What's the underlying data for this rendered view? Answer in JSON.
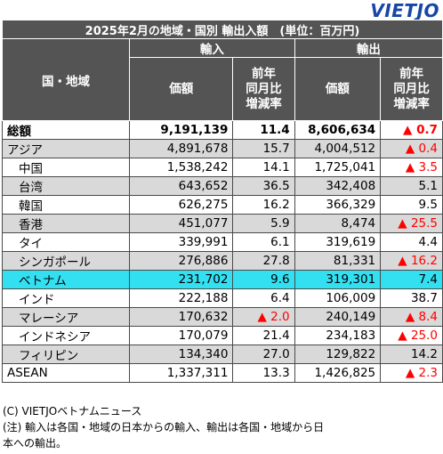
{
  "logo": "VIETJO",
  "title": "2025年2月の地域・国別 輸出入額　(単位：百万円)",
  "headers": {
    "region": "国・地域",
    "import_group": "輸入",
    "export_group": "輸出",
    "amount": "価額",
    "yoy_line1": "前年",
    "yoy_line2": "同月比",
    "yoy_line3": "増減率"
  },
  "rows": [
    {
      "name": "総額",
      "imp": "9,191,139",
      "imp_rate": "11.4",
      "exp": "8,606,634",
      "exp_rate": "0.7",
      "imp_neg": false,
      "exp_neg": true,
      "style": "total",
      "indent": false
    },
    {
      "name": "アジア",
      "imp": "4,891,678",
      "imp_rate": "15.7",
      "exp": "4,004,512",
      "exp_rate": "0.4",
      "imp_neg": false,
      "exp_neg": true,
      "style": "gray",
      "indent": false
    },
    {
      "name": "中国",
      "imp": "1,538,242",
      "imp_rate": "14.1",
      "exp": "1,725,041",
      "exp_rate": "3.5",
      "imp_neg": false,
      "exp_neg": true,
      "style": "white",
      "indent": true
    },
    {
      "name": "台湾",
      "imp": "643,652",
      "imp_rate": "36.5",
      "exp": "342,408",
      "exp_rate": "5.1",
      "imp_neg": false,
      "exp_neg": false,
      "style": "gray",
      "indent": true
    },
    {
      "name": "韓国",
      "imp": "626,275",
      "imp_rate": "16.2",
      "exp": "366,329",
      "exp_rate": "9.5",
      "imp_neg": false,
      "exp_neg": false,
      "style": "white",
      "indent": true
    },
    {
      "name": "香港",
      "imp": "451,077",
      "imp_rate": "5.9",
      "exp": "8,474",
      "exp_rate": "25.5",
      "imp_neg": false,
      "exp_neg": true,
      "style": "gray",
      "indent": true
    },
    {
      "name": "タイ",
      "imp": "339,991",
      "imp_rate": "6.1",
      "exp": "319,619",
      "exp_rate": "4.4",
      "imp_neg": false,
      "exp_neg": false,
      "style": "white",
      "indent": true
    },
    {
      "name": "シンガポール",
      "imp": "276,886",
      "imp_rate": "27.8",
      "exp": "81,331",
      "exp_rate": "16.2",
      "imp_neg": false,
      "exp_neg": true,
      "style": "gray",
      "indent": true
    },
    {
      "name": "ベトナム",
      "imp": "231,702",
      "imp_rate": "9.6",
      "exp": "319,301",
      "exp_rate": "7.4",
      "imp_neg": false,
      "exp_neg": false,
      "style": "hl",
      "indent": true
    },
    {
      "name": "インド",
      "imp": "222,188",
      "imp_rate": "6.4",
      "exp": "106,009",
      "exp_rate": "38.7",
      "imp_neg": false,
      "exp_neg": false,
      "style": "white",
      "indent": true
    },
    {
      "name": "マレーシア",
      "imp": "170,632",
      "imp_rate": "2.0",
      "exp": "240,149",
      "exp_rate": "8.4",
      "imp_neg": true,
      "exp_neg": true,
      "style": "gray",
      "indent": true
    },
    {
      "name": "インドネシア",
      "imp": "170,079",
      "imp_rate": "21.4",
      "exp": "234,183",
      "exp_rate": "25.0",
      "imp_neg": false,
      "exp_neg": true,
      "style": "white",
      "indent": true
    },
    {
      "name": "フィリピン",
      "imp": "134,340",
      "imp_rate": "27.0",
      "exp": "129,822",
      "exp_rate": "14.2",
      "imp_neg": false,
      "exp_neg": false,
      "style": "gray",
      "indent": true
    },
    {
      "name": "ASEAN",
      "imp": "1,337,311",
      "imp_rate": "13.3",
      "exp": "1,426,825",
      "exp_rate": "2.3",
      "imp_neg": false,
      "exp_neg": true,
      "style": "white",
      "indent": false
    }
  ],
  "negative_marker": "▲",
  "footer": {
    "line1": "(C) VIETJOベトナムニュース",
    "line2": "(注) 輸入は各国・地域の日本からの輸入、輸出は各国・地域から日",
    "line3": "本への輸出。"
  },
  "colors": {
    "header_bg": "#545454",
    "gray_row": "#d9d9d9",
    "highlight_row": "#33e0f2",
    "negative": "#ff0000",
    "logo": "#1746a6"
  }
}
